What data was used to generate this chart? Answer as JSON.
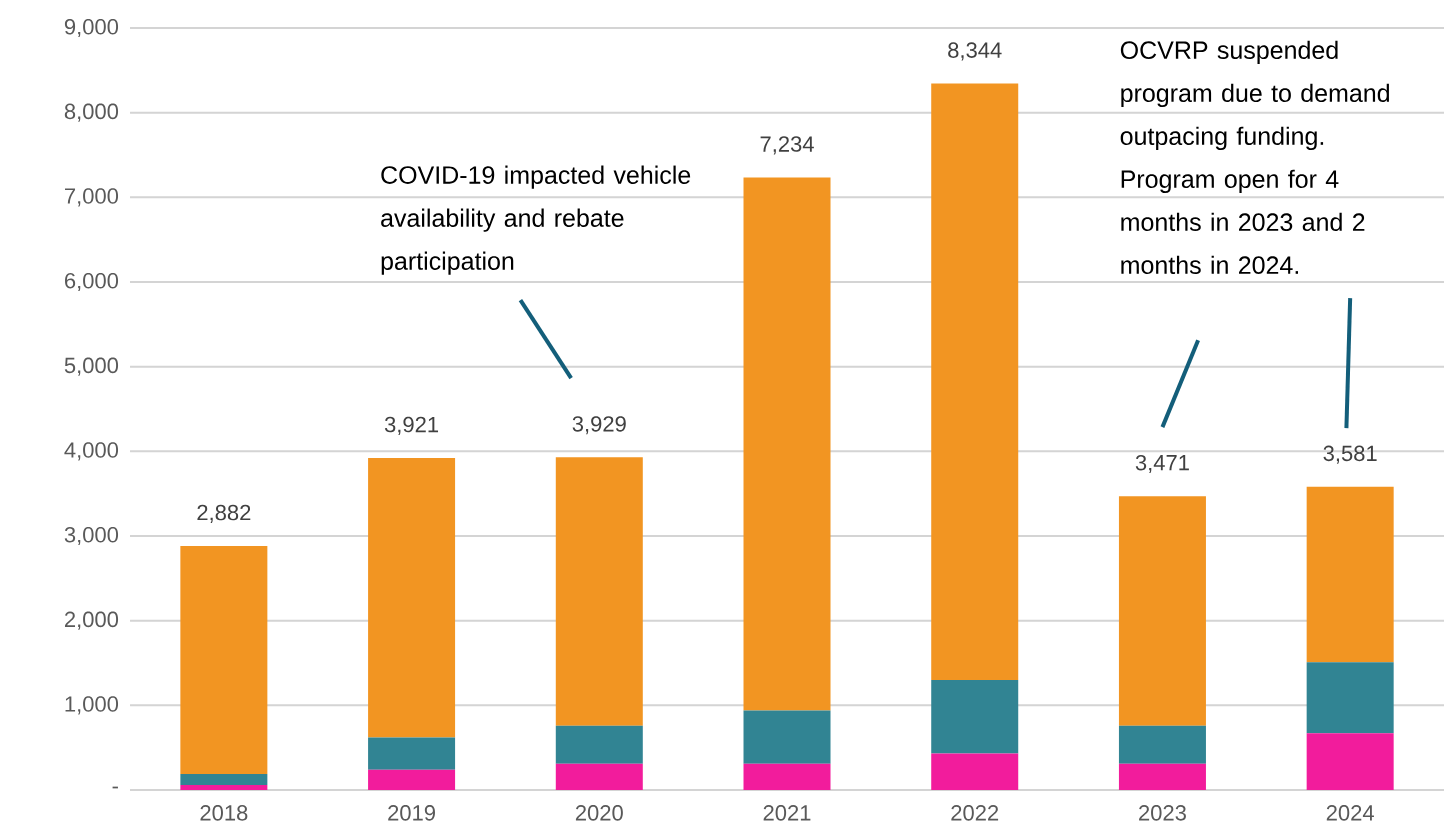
{
  "chart_data": {
    "type": "bar",
    "stacked": true,
    "categories": [
      "2018",
      "2019",
      "2020",
      "2021",
      "2022",
      "2023",
      "2024"
    ],
    "series": [
      {
        "color": "#f21c9c",
        "values": [
          60,
          240,
          310,
          310,
          430,
          310,
          670
        ]
      },
      {
        "color": "#318493",
        "values": [
          130,
          380,
          450,
          630,
          870,
          450,
          840
        ]
      },
      {
        "color": "#f29522",
        "values": [
          2692,
          3301,
          3169,
          6294,
          7044,
          2711,
          2071
        ]
      }
    ],
    "totals": [
      "2,882",
      "3,921",
      "3,929",
      "7,234",
      "8,344",
      "3,471",
      "3,581"
    ],
    "ylim": [
      0,
      9000
    ],
    "yticks": [
      {
        "value": 0,
        "label": "-"
      },
      {
        "value": 1000,
        "label": "1,000"
      },
      {
        "value": 2000,
        "label": "2,000"
      },
      {
        "value": 3000,
        "label": "3,000"
      },
      {
        "value": 4000,
        "label": "4,000"
      },
      {
        "value": 5000,
        "label": "5,000"
      },
      {
        "value": 6000,
        "label": "6,000"
      },
      {
        "value": 7000,
        "label": "7,000"
      },
      {
        "value": 8000,
        "label": "8,000"
      },
      {
        "value": 9000,
        "label": "9,000"
      }
    ],
    "grid": "y",
    "annotations": [
      "COVID-19 impacted vehicle availability and rebate participation",
      "OCVRP suspended program due to demand outpacing funding. Program open for 4 months in 2023 and 2 months in 2024."
    ]
  }
}
